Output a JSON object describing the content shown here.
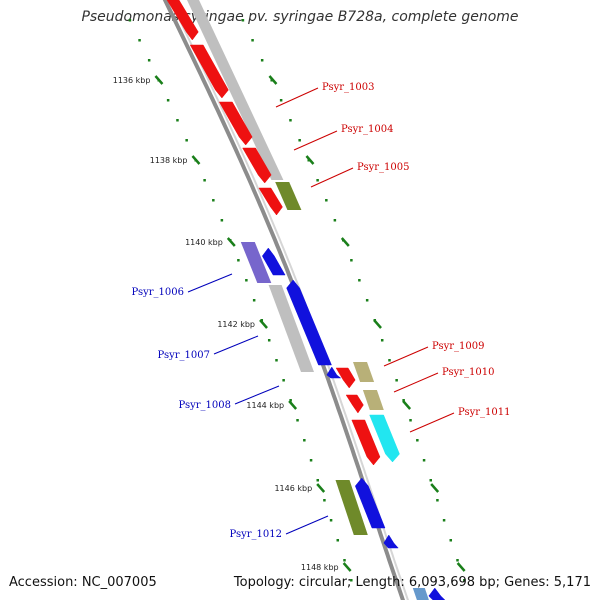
{
  "title": "Pseudomonas syringae pv. syringae B728a, complete genome",
  "footer": {
    "accession": "Accession: NC_007005",
    "topology": "Topology: circular; Length: 6,093,698 bp; Genes: 5,171"
  },
  "colors": {
    "backbone": "#8c8c8c",
    "tick_green": "#1a7f1a",
    "forward_gene": "#ee1111",
    "reverse_gene": "#1111dd",
    "forward_label": "#cc0000",
    "reverse_label": "#0000bb",
    "cds_gray": "#bfbfbf",
    "olive": "#6f8a2a",
    "khaki": "#b8b078",
    "cyan": "#22e6f0",
    "purple": "#7766cc"
  },
  "ticks": [
    "1136 kbp",
    "1138 kbp",
    "1140 kbp",
    "1142 kbp",
    "1144 kbp",
    "1146 kbp",
    "1148 kbp"
  ],
  "genes": [
    {
      "id": "Psyr_1003",
      "strand": "+"
    },
    {
      "id": "Psyr_1004",
      "strand": "+"
    },
    {
      "id": "Psyr_1005",
      "strand": "+"
    },
    {
      "id": "Psyr_1006",
      "strand": "-"
    },
    {
      "id": "Psyr_1007",
      "strand": "-"
    },
    {
      "id": "Psyr_1008",
      "strand": "-"
    },
    {
      "id": "Psyr_1009",
      "strand": "+"
    },
    {
      "id": "Psyr_1010",
      "strand": "+"
    },
    {
      "id": "Psyr_1011",
      "strand": "+"
    },
    {
      "id": "Psyr_1012",
      "strand": "-"
    }
  ]
}
